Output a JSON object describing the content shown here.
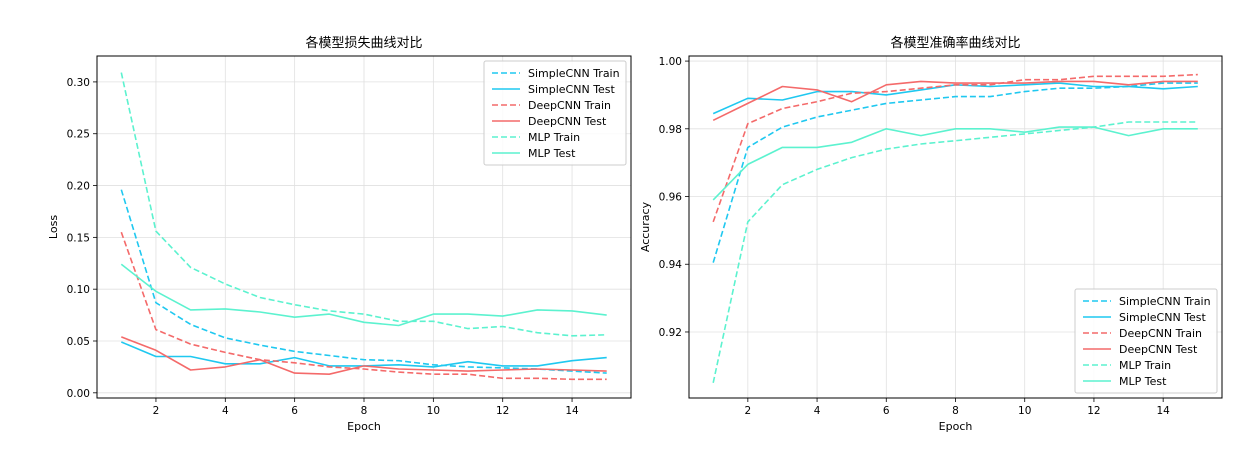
{
  "colors": {
    "simplecnn": "#1fc8f0",
    "deepcnn": "#f46a6a",
    "mlp": "#5cf2cf"
  },
  "chart_data": [
    {
      "type": "line",
      "title": "各模型损失曲线对比",
      "xlabel": "Epoch",
      "ylabel": "Loss",
      "xlim": [
        0.3,
        15.7
      ],
      "ylim": [
        -0.005,
        0.325
      ],
      "xticks": [
        2,
        4,
        6,
        8,
        10,
        12,
        14
      ],
      "yticks": [
        0.0,
        0.05,
        0.1,
        0.15,
        0.2,
        0.25,
        0.3
      ],
      "ytick_labels": [
        "0.00",
        "0.05",
        "0.10",
        "0.15",
        "0.20",
        "0.25",
        "0.30"
      ],
      "grid": true,
      "legend_position": "top-right",
      "x": [
        1,
        2,
        3,
        4,
        5,
        6,
        7,
        8,
        9,
        10,
        11,
        12,
        13,
        14,
        15
      ],
      "series": [
        {
          "name": "SimpleCNN Train",
          "color_key": "simplecnn",
          "dash": true,
          "values": [
            0.196,
            0.087,
            0.066,
            0.053,
            0.046,
            0.04,
            0.036,
            0.032,
            0.031,
            0.027,
            0.025,
            0.024,
            0.023,
            0.021,
            0.019
          ]
        },
        {
          "name": "SimpleCNN Test",
          "color_key": "simplecnn",
          "dash": false,
          "values": [
            0.049,
            0.035,
            0.035,
            0.028,
            0.028,
            0.034,
            0.026,
            0.026,
            0.027,
            0.025,
            0.03,
            0.026,
            0.026,
            0.031,
            0.034
          ]
        },
        {
          "name": "DeepCNN Train",
          "color_key": "deepcnn",
          "dash": true,
          "values": [
            0.155,
            0.061,
            0.047,
            0.039,
            0.032,
            0.029,
            0.025,
            0.023,
            0.02,
            0.018,
            0.018,
            0.014,
            0.014,
            0.013,
            0.013
          ]
        },
        {
          "name": "DeepCNN Test",
          "color_key": "deepcnn",
          "dash": false,
          "values": [
            0.054,
            0.041,
            0.022,
            0.025,
            0.032,
            0.019,
            0.018,
            0.026,
            0.023,
            0.022,
            0.021,
            0.022,
            0.023,
            0.022,
            0.021
          ]
        },
        {
          "name": "MLP Train",
          "color_key": "mlp",
          "dash": true,
          "values": [
            0.309,
            0.156,
            0.121,
            0.105,
            0.092,
            0.085,
            0.079,
            0.076,
            0.069,
            0.069,
            0.062,
            0.064,
            0.058,
            0.055,
            0.056
          ]
        },
        {
          "name": "MLP Test",
          "color_key": "mlp",
          "dash": false,
          "values": [
            0.124,
            0.098,
            0.08,
            0.081,
            0.078,
            0.073,
            0.076,
            0.068,
            0.065,
            0.076,
            0.076,
            0.074,
            0.08,
            0.079,
            0.075
          ]
        }
      ]
    },
    {
      "type": "line",
      "title": "各模型准确率曲线对比",
      "xlabel": "Epoch",
      "ylabel": "Accuracy",
      "xlim": [
        0.3,
        15.7
      ],
      "ylim": [
        0.9005,
        1.0015
      ],
      "xticks": [
        2,
        4,
        6,
        8,
        10,
        12,
        14
      ],
      "yticks": [
        0.92,
        0.94,
        0.96,
        0.98,
        1.0
      ],
      "ytick_labels": [
        "0.92",
        "0.94",
        "0.96",
        "0.98",
        "1.00"
      ],
      "grid": true,
      "legend_position": "bottom-right",
      "x": [
        1,
        2,
        3,
        4,
        5,
        6,
        7,
        8,
        9,
        10,
        11,
        12,
        13,
        14,
        15
      ],
      "series": [
        {
          "name": "SimpleCNN Train",
          "color_key": "simplecnn",
          "dash": true,
          "values": [
            0.9405,
            0.9745,
            0.9805,
            0.9835,
            0.9855,
            0.9875,
            0.9885,
            0.9895,
            0.9895,
            0.991,
            0.992,
            0.992,
            0.9925,
            0.9935,
            0.9935
          ]
        },
        {
          "name": "SimpleCNN Test",
          "color_key": "simplecnn",
          "dash": false,
          "values": [
            0.9845,
            0.989,
            0.9885,
            0.991,
            0.991,
            0.99,
            0.9915,
            0.993,
            0.9925,
            0.993,
            0.9935,
            0.9925,
            0.9925,
            0.9918,
            0.9925
          ]
        },
        {
          "name": "DeepCNN Train",
          "color_key": "deepcnn",
          "dash": true,
          "values": [
            0.9525,
            0.9815,
            0.986,
            0.988,
            0.9905,
            0.991,
            0.992,
            0.993,
            0.993,
            0.9945,
            0.9945,
            0.9955,
            0.9955,
            0.9955,
            0.996
          ]
        },
        {
          "name": "DeepCNN Test",
          "color_key": "deepcnn",
          "dash": false,
          "values": [
            0.9825,
            0.9875,
            0.9925,
            0.9915,
            0.988,
            0.993,
            0.994,
            0.9935,
            0.9935,
            0.9935,
            0.994,
            0.994,
            0.993,
            0.994,
            0.994
          ]
        },
        {
          "name": "MLP Train",
          "color_key": "mlp",
          "dash": true,
          "values": [
            0.905,
            0.9525,
            0.9635,
            0.968,
            0.9715,
            0.974,
            0.9755,
            0.9765,
            0.9775,
            0.9785,
            0.9795,
            0.9805,
            0.982,
            0.982,
            0.982
          ]
        },
        {
          "name": "MLP Test",
          "color_key": "mlp",
          "dash": false,
          "values": [
            0.959,
            0.9695,
            0.9745,
            0.9745,
            0.976,
            0.98,
            0.978,
            0.98,
            0.98,
            0.979,
            0.9805,
            0.9805,
            0.978,
            0.98,
            0.98
          ]
        }
      ]
    }
  ]
}
